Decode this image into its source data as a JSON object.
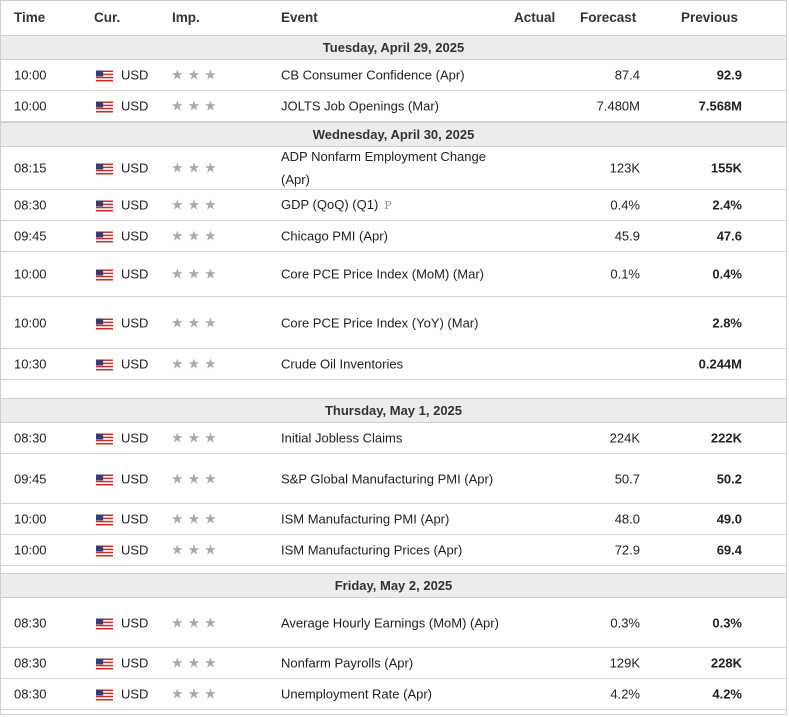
{
  "columns": {
    "time": "Time",
    "currency": "Cur.",
    "importance": "Imp.",
    "event": "Event",
    "actual": "Actual",
    "forecast": "Forecast",
    "previous": "Previous"
  },
  "days": [
    {
      "label": "Tuesday, April 29, 2025",
      "rows": [
        {
          "time": "10:00",
          "cur": "USD",
          "event": "CB Consumer Confidence (Apr)",
          "actual": "",
          "forecast": "87.4",
          "previous": "92.9"
        },
        {
          "time": "10:00",
          "cur": "USD",
          "event": "JOLTS Job Openings (Mar)",
          "actual": "",
          "forecast": "7.480M",
          "previous": "7.568M"
        }
      ]
    },
    {
      "label": "Wednesday, April 30, 2025",
      "rows": [
        {
          "time": "08:15",
          "cur": "USD",
          "event": "ADP Nonfarm Employment Change (Apr)",
          "actual": "",
          "forecast": "123K",
          "previous": "155K"
        },
        {
          "time": "08:30",
          "cur": "USD",
          "event": "GDP (QoQ) (Q1)",
          "prelim": "P",
          "actual": "",
          "forecast": "0.4%",
          "previous": "2.4%"
        },
        {
          "time": "09:45",
          "cur": "USD",
          "event": "Chicago PMI (Apr)",
          "actual": "",
          "forecast": "45.9",
          "previous": "47.6"
        },
        {
          "time": "10:00",
          "cur": "USD",
          "event": "Core PCE Price Index (MoM) (Mar)",
          "actual": "",
          "forecast": "0.1%",
          "previous": "0.4%"
        },
        {
          "time": "10:00",
          "cur": "USD",
          "event": "Core PCE Price Index (YoY) (Mar)",
          "actual": "",
          "forecast": "",
          "previous": "2.8%"
        },
        {
          "time": "10:30",
          "cur": "USD",
          "event": "Crude Oil Inventories",
          "actual": "",
          "forecast": "",
          "previous": "0.244M"
        }
      ]
    },
    {
      "label": "Thursday, May 1, 2025",
      "rows": [
        {
          "time": "08:30",
          "cur": "USD",
          "event": "Initial Jobless Claims",
          "actual": "",
          "forecast": "224K",
          "previous": "222K"
        },
        {
          "time": "09:45",
          "cur": "USD",
          "event": "S&P Global Manufacturing PMI (Apr)",
          "actual": "",
          "forecast": "50.7",
          "previous": "50.2"
        },
        {
          "time": "10:00",
          "cur": "USD",
          "event": "ISM Manufacturing PMI (Apr)",
          "actual": "",
          "forecast": "48.0",
          "previous": "49.0"
        },
        {
          "time": "10:00",
          "cur": "USD",
          "event": "ISM Manufacturing Prices (Apr)",
          "actual": "",
          "forecast": "72.9",
          "previous": "69.4"
        }
      ]
    },
    {
      "label": "Friday, May 2, 2025",
      "rows": [
        {
          "time": "08:30",
          "cur": "USD",
          "event": "Average Hourly Earnings (MoM) (Apr)",
          "actual": "",
          "forecast": "0.3%",
          "previous": "0.3%"
        },
        {
          "time": "08:30",
          "cur": "USD",
          "event": "Nonfarm Payrolls (Apr)",
          "actual": "",
          "forecast": "129K",
          "previous": "228K"
        },
        {
          "time": "08:30",
          "cur": "USD",
          "event": "Unemployment Rate (Apr)",
          "actual": "",
          "forecast": "4.2%",
          "previous": "4.2%"
        }
      ]
    }
  ],
  "icons": {
    "flag": "us-flag-icon",
    "importance": "star-icon"
  },
  "colors": {
    "day_header_bg": "#ececec",
    "star": "#a9a9a9",
    "border": "#cfcfcf"
  }
}
